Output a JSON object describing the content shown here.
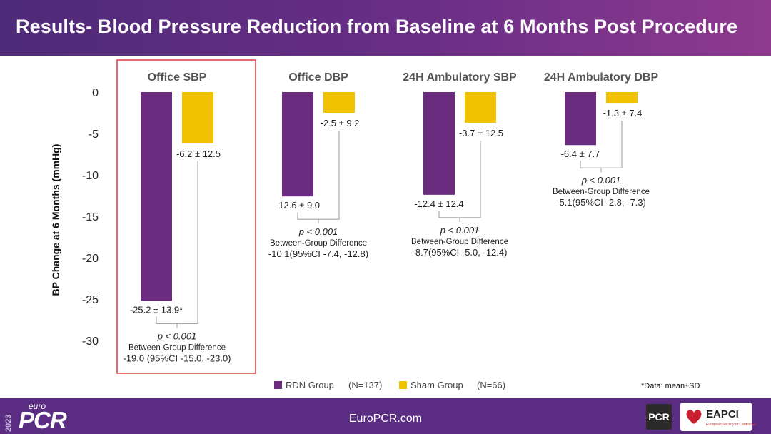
{
  "slide": {
    "title": "Results- Blood Pressure Reduction from Baseline at 6 Months Post Procedure",
    "footer_site": "EuroPCR.com",
    "footnote": "*Data: mean±SD",
    "logo_year": "2023",
    "logo_euro": "euro",
    "logo_pcr": "PCR",
    "badge_pcr": "PCR",
    "badge_eapci": "EAPCI",
    "badge_eapci_sub": "European Society of Cardiology"
  },
  "colors": {
    "rdn": "#6b2c80",
    "sham": "#f2c200",
    "header": "#5b2d82",
    "highlight_box": "#e03a3a"
  },
  "chart_data": {
    "type": "bar",
    "ylabel": "BP Change at 6 Months (mmHg)",
    "ylim": [
      -30,
      0
    ],
    "yticks": [
      0,
      -5,
      -10,
      -15,
      -20,
      -25,
      -30
    ],
    "categories": [
      "Office SBP",
      "Office DBP",
      "24H Ambulatory SBP",
      "24H Ambulatory DBP"
    ],
    "highlighted_category": "Office SBP",
    "series": [
      {
        "name": "RDN Group",
        "n_label": "(N=137)",
        "values": [
          -25.2,
          -12.6,
          -12.4,
          -6.4
        ],
        "labels": [
          "-25.2 ± 13.9*",
          "-12.6 ± 9.0",
          "-12.4 ± 12.4",
          "-6.4 ± 7.7"
        ]
      },
      {
        "name": "Sham Group",
        "n_label": "(N=66)",
        "values": [
          -6.2,
          -2.5,
          -3.7,
          -1.3
        ],
        "labels": [
          "-6.2 ± 12.5",
          "-2.5 ± 9.2",
          "-3.7 ± 12.5",
          "-1.3 ± 7.4"
        ]
      }
    ],
    "comparisons": [
      {
        "p": "p < 0.001",
        "label": "Between-Group Difference",
        "diff": "-19.0 (95%CI -15.0, -23.0)"
      },
      {
        "p": "p < 0.001",
        "label": "Between-Group Difference",
        "diff": "-10.1(95%CI -7.4, -12.8)"
      },
      {
        "p": "p < 0.001",
        "label": "Between-Group Difference",
        "diff": "-8.7(95%CI -5.0, -12.4)"
      },
      {
        "p": "p < 0.001",
        "label": "Between-Group Difference",
        "diff": "-5.1(95%CI -2.8, -7.3)"
      }
    ]
  }
}
